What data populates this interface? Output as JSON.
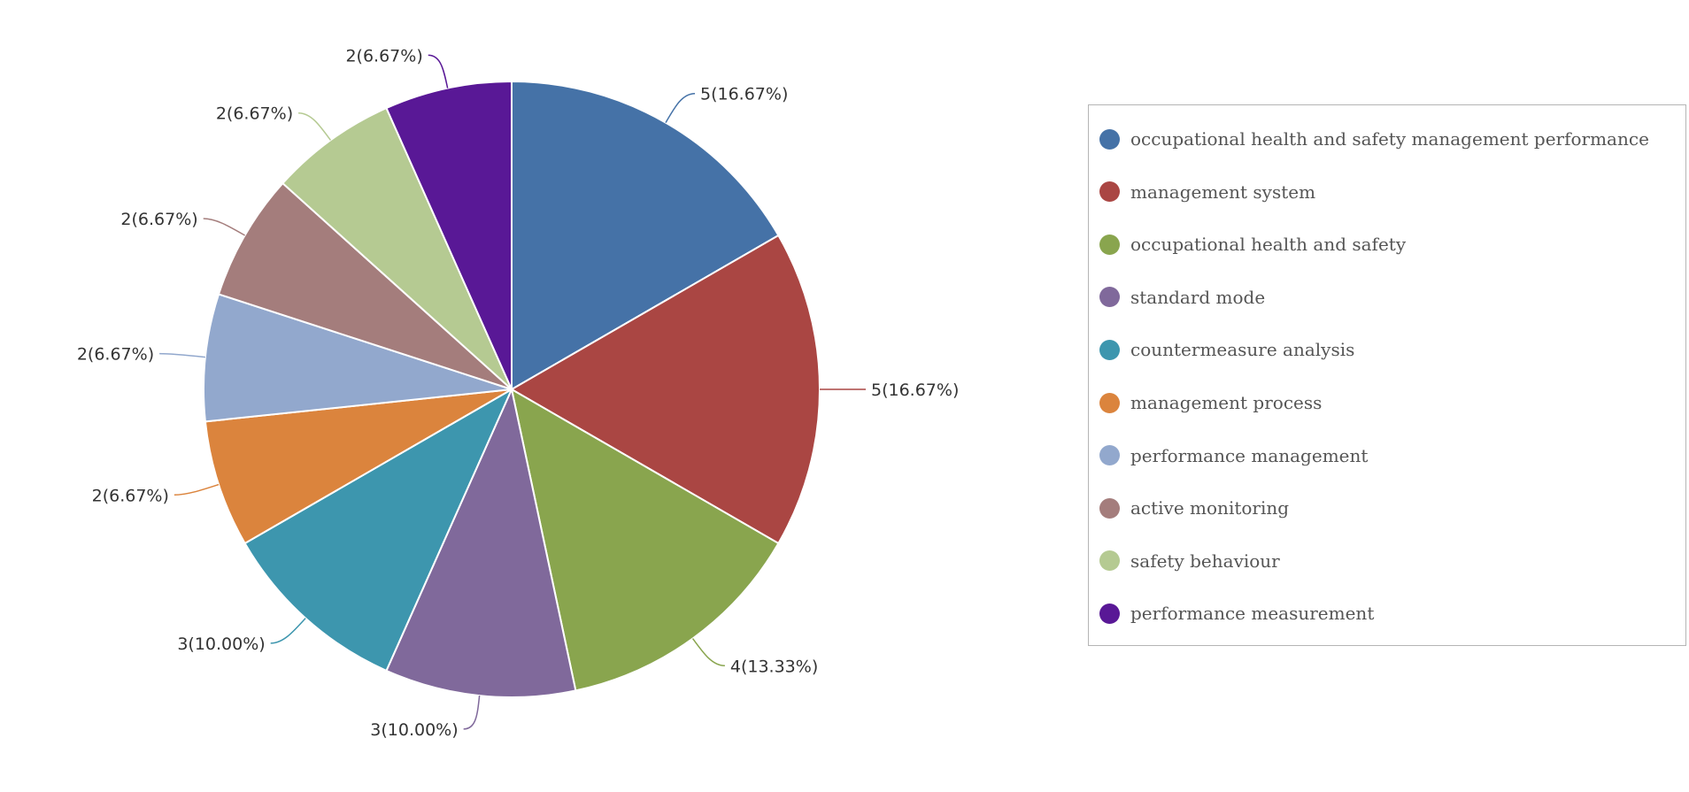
{
  "chart_data": {
    "type": "pie",
    "title": "",
    "legend_position": "right",
    "slices": [
      {
        "name": "occupational health and safety management performance",
        "value": 5,
        "percent": 16.67,
        "label": "5(16.67%)",
        "color": "#4572a7"
      },
      {
        "name": "management system",
        "value": 5,
        "percent": 16.67,
        "label": "5(16.67%)",
        "color": "#aa4643"
      },
      {
        "name": "occupational health and safety",
        "value": 4,
        "percent": 13.33,
        "label": "4(13.33%)",
        "color": "#89a54e"
      },
      {
        "name": "standard mode",
        "value": 3,
        "percent": 10.0,
        "label": "3(10.00%)",
        "color": "#80699b"
      },
      {
        "name": "countermeasure analysis",
        "value": 3,
        "percent": 10.0,
        "label": "3(10.00%)",
        "color": "#3d96ae"
      },
      {
        "name": "management process",
        "value": 2,
        "percent": 6.67,
        "label": "2(6.67%)",
        "color": "#db843d"
      },
      {
        "name": "performance management",
        "value": 2,
        "percent": 6.67,
        "label": "2(6.67%)",
        "color": "#92a8cd"
      },
      {
        "name": "active monitoring",
        "value": 2,
        "percent": 6.67,
        "label": "2(6.67%)",
        "color": "#a47d7c"
      },
      {
        "name": "safety behaviour",
        "value": 2,
        "percent": 6.67,
        "label": "2(6.67%)",
        "color": "#b5ca92"
      },
      {
        "name": "performance measurement",
        "value": 2,
        "percent": 6.67,
        "label": "2(6.67%)",
        "color": "#591896"
      }
    ]
  }
}
